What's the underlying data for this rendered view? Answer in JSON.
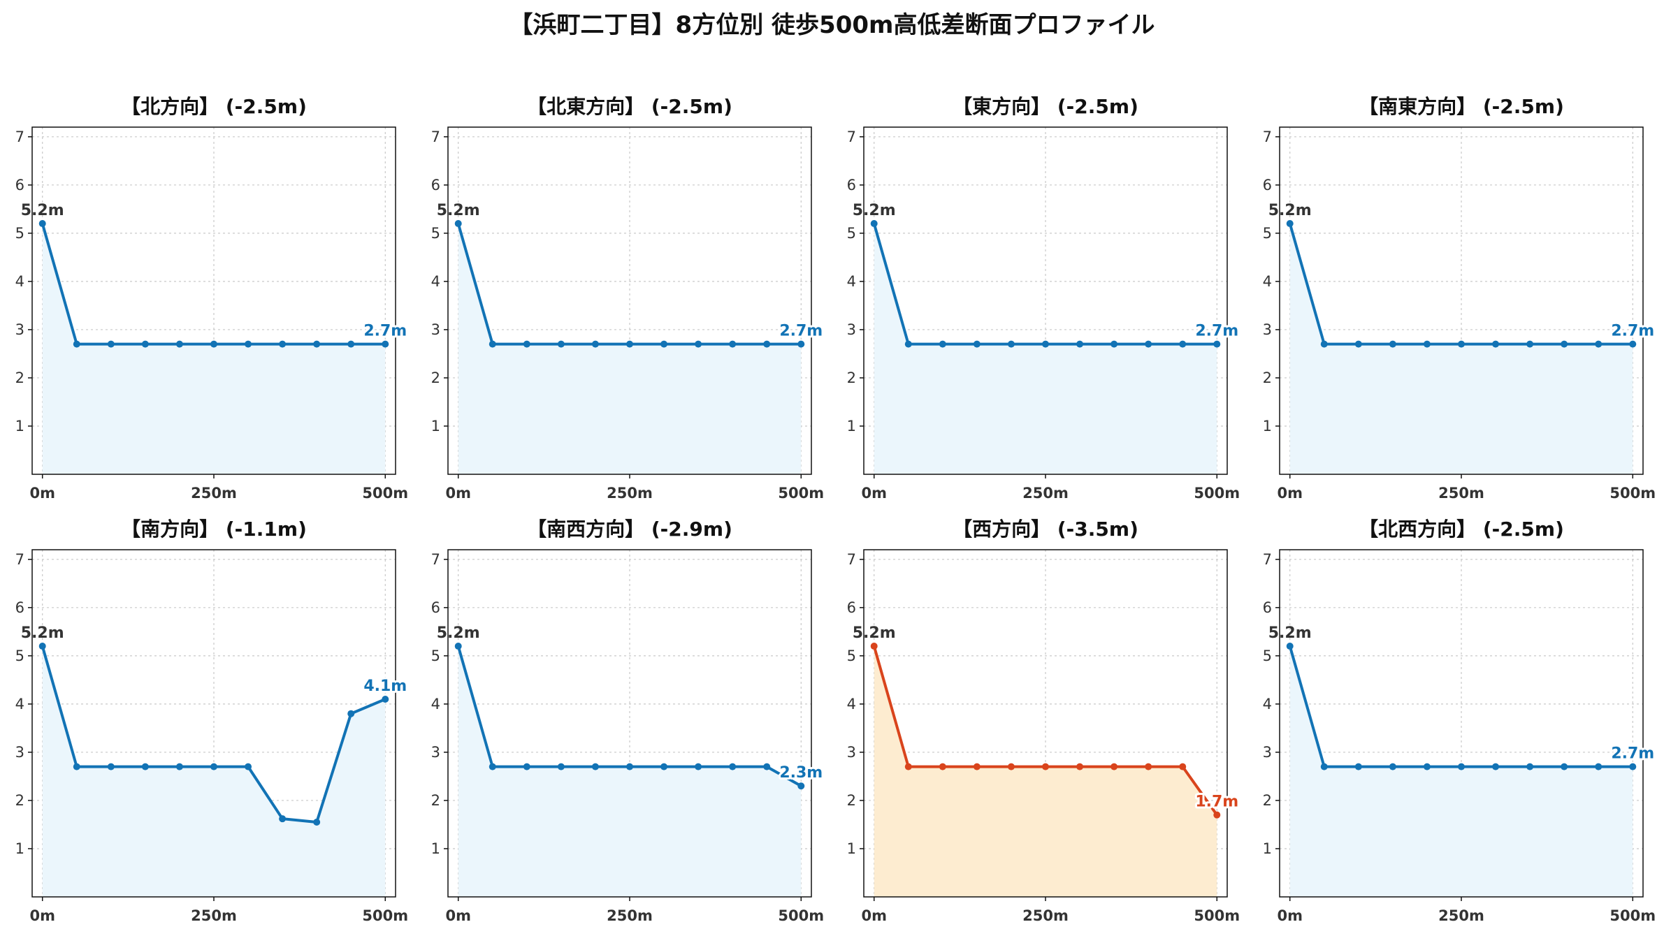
{
  "title": "【浜町二丁目】8方位別 徒歩500m高低差断面プロファイル",
  "chart_data": [
    {
      "type": "line",
      "title": "【北方向】 (-2.5m)",
      "x": [
        0,
        50,
        100,
        150,
        200,
        250,
        300,
        350,
        400,
        450,
        500
      ],
      "values": [
        5.2,
        2.7,
        2.7,
        2.7,
        2.7,
        2.7,
        2.7,
        2.7,
        2.7,
        2.7,
        2.7
      ],
      "start_label": "5.2m",
      "end_label": "2.7m",
      "xticks": [
        "0m",
        "250m",
        "500m"
      ],
      "xtick_values": [
        0,
        250,
        500
      ],
      "yticks": [
        "1",
        "2",
        "3",
        "4",
        "5",
        "6",
        "7"
      ],
      "ytick_values": [
        1,
        2,
        3,
        4,
        5,
        6,
        7
      ],
      "xlim": [
        -15,
        515
      ],
      "ylim": [
        0,
        7.2
      ],
      "grid": true,
      "line_color": "#1273b5",
      "fill_color": "#ebf6fc"
    },
    {
      "type": "line",
      "title": "【北東方向】 (-2.5m)",
      "x": [
        0,
        50,
        100,
        150,
        200,
        250,
        300,
        350,
        400,
        450,
        500
      ],
      "values": [
        5.2,
        2.7,
        2.7,
        2.7,
        2.7,
        2.7,
        2.7,
        2.7,
        2.7,
        2.7,
        2.7
      ],
      "start_label": "5.2m",
      "end_label": "2.7m",
      "xticks": [
        "0m",
        "250m",
        "500m"
      ],
      "xtick_values": [
        0,
        250,
        500
      ],
      "yticks": [
        "1",
        "2",
        "3",
        "4",
        "5",
        "6",
        "7"
      ],
      "ytick_values": [
        1,
        2,
        3,
        4,
        5,
        6,
        7
      ],
      "xlim": [
        -15,
        515
      ],
      "ylim": [
        0,
        7.2
      ],
      "grid": true,
      "line_color": "#1273b5",
      "fill_color": "#ebf6fc"
    },
    {
      "type": "line",
      "title": "【東方向】 (-2.5m)",
      "x": [
        0,
        50,
        100,
        150,
        200,
        250,
        300,
        350,
        400,
        450,
        500
      ],
      "values": [
        5.2,
        2.7,
        2.7,
        2.7,
        2.7,
        2.7,
        2.7,
        2.7,
        2.7,
        2.7,
        2.7
      ],
      "start_label": "5.2m",
      "end_label": "2.7m",
      "xticks": [
        "0m",
        "250m",
        "500m"
      ],
      "xtick_values": [
        0,
        250,
        500
      ],
      "yticks": [
        "1",
        "2",
        "3",
        "4",
        "5",
        "6",
        "7"
      ],
      "ytick_values": [
        1,
        2,
        3,
        4,
        5,
        6,
        7
      ],
      "xlim": [
        -15,
        515
      ],
      "ylim": [
        0,
        7.2
      ],
      "grid": true,
      "line_color": "#1273b5",
      "fill_color": "#ebf6fc"
    },
    {
      "type": "line",
      "title": "【南東方向】 (-2.5m)",
      "x": [
        0,
        50,
        100,
        150,
        200,
        250,
        300,
        350,
        400,
        450,
        500
      ],
      "values": [
        5.2,
        2.7,
        2.7,
        2.7,
        2.7,
        2.7,
        2.7,
        2.7,
        2.7,
        2.7,
        2.7
      ],
      "start_label": "5.2m",
      "end_label": "2.7m",
      "xticks": [
        "0m",
        "250m",
        "500m"
      ],
      "xtick_values": [
        0,
        250,
        500
      ],
      "yticks": [
        "1",
        "2",
        "3",
        "4",
        "5",
        "6",
        "7"
      ],
      "ytick_values": [
        1,
        2,
        3,
        4,
        5,
        6,
        7
      ],
      "xlim": [
        -15,
        515
      ],
      "ylim": [
        0,
        7.2
      ],
      "grid": true,
      "line_color": "#1273b5",
      "fill_color": "#ebf6fc"
    },
    {
      "type": "line",
      "title": "【南方向】 (-1.1m)",
      "x": [
        0,
        50,
        100,
        150,
        200,
        250,
        300,
        350,
        400,
        450,
        500
      ],
      "values": [
        5.2,
        2.7,
        2.7,
        2.7,
        2.7,
        2.7,
        2.7,
        1.62,
        1.55,
        3.8,
        4.1
      ],
      "start_label": "5.2m",
      "end_label": "4.1m",
      "xticks": [
        "0m",
        "250m",
        "500m"
      ],
      "xtick_values": [
        0,
        250,
        500
      ],
      "yticks": [
        "1",
        "2",
        "3",
        "4",
        "5",
        "6",
        "7"
      ],
      "ytick_values": [
        1,
        2,
        3,
        4,
        5,
        6,
        7
      ],
      "xlim": [
        -15,
        515
      ],
      "ylim": [
        0,
        7.2
      ],
      "grid": true,
      "line_color": "#1273b5",
      "fill_color": "#ebf6fc"
    },
    {
      "type": "line",
      "title": "【南西方向】 (-2.9m)",
      "x": [
        0,
        50,
        100,
        150,
        200,
        250,
        300,
        350,
        400,
        450,
        500
      ],
      "values": [
        5.2,
        2.7,
        2.7,
        2.7,
        2.7,
        2.7,
        2.7,
        2.7,
        2.7,
        2.7,
        2.3
      ],
      "start_label": "5.2m",
      "end_label": "2.3m",
      "xticks": [
        "0m",
        "250m",
        "500m"
      ],
      "xtick_values": [
        0,
        250,
        500
      ],
      "yticks": [
        "1",
        "2",
        "3",
        "4",
        "5",
        "6",
        "7"
      ],
      "ytick_values": [
        1,
        2,
        3,
        4,
        5,
        6,
        7
      ],
      "xlim": [
        -15,
        515
      ],
      "ylim": [
        0,
        7.2
      ],
      "grid": true,
      "line_color": "#1273b5",
      "fill_color": "#ebf6fc"
    },
    {
      "type": "line",
      "title": "【西方向】 (-3.5m)",
      "x": [
        0,
        50,
        100,
        150,
        200,
        250,
        300,
        350,
        400,
        450,
        500
      ],
      "values": [
        5.2,
        2.7,
        2.7,
        2.7,
        2.7,
        2.7,
        2.7,
        2.7,
        2.7,
        2.7,
        1.7
      ],
      "start_label": "5.2m",
      "end_label": "1.7m",
      "xticks": [
        "0m",
        "250m",
        "500m"
      ],
      "xtick_values": [
        0,
        250,
        500
      ],
      "yticks": [
        "1",
        "2",
        "3",
        "4",
        "5",
        "6",
        "7"
      ],
      "ytick_values": [
        1,
        2,
        3,
        4,
        5,
        6,
        7
      ],
      "xlim": [
        -15,
        515
      ],
      "ylim": [
        0,
        7.2
      ],
      "grid": true,
      "line_color": "#d9441c",
      "fill_color": "#fdecd0"
    },
    {
      "type": "line",
      "title": "【北西方向】 (-2.5m)",
      "x": [
        0,
        50,
        100,
        150,
        200,
        250,
        300,
        350,
        400,
        450,
        500
      ],
      "values": [
        5.2,
        2.7,
        2.7,
        2.7,
        2.7,
        2.7,
        2.7,
        2.7,
        2.7,
        2.7,
        2.7
      ],
      "start_label": "5.2m",
      "end_label": "2.7m",
      "xticks": [
        "0m",
        "250m",
        "500m"
      ],
      "xtick_values": [
        0,
        250,
        500
      ],
      "yticks": [
        "1",
        "2",
        "3",
        "4",
        "5",
        "6",
        "7"
      ],
      "ytick_values": [
        1,
        2,
        3,
        4,
        5,
        6,
        7
      ],
      "xlim": [
        -15,
        515
      ],
      "ylim": [
        0,
        7.2
      ],
      "grid": true,
      "line_color": "#1273b5",
      "fill_color": "#ebf6fc"
    }
  ]
}
